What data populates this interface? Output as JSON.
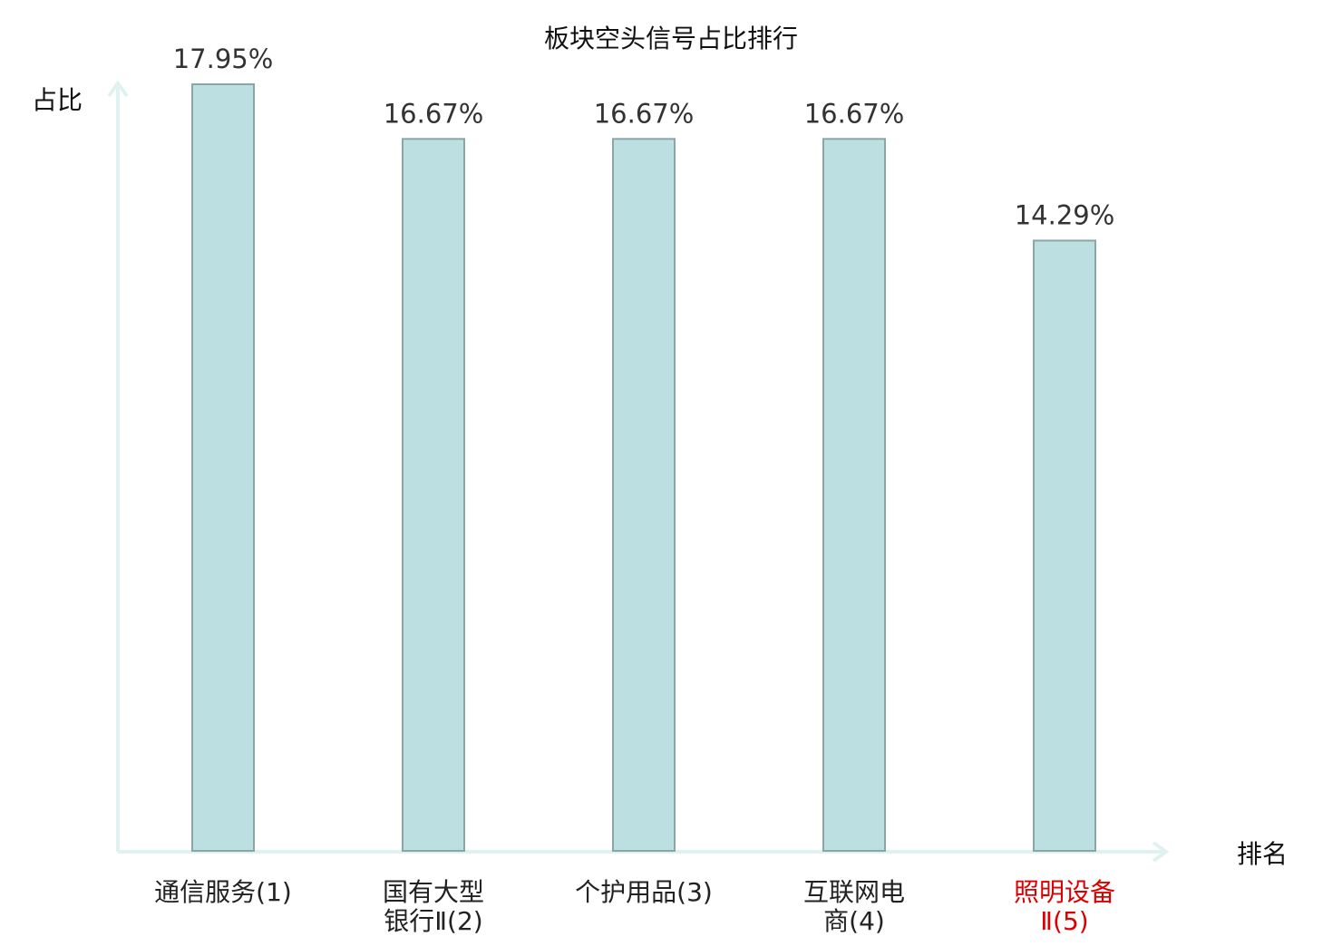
{
  "chart_data": {
    "type": "bar",
    "title": "板块空头信号占比排行",
    "ylabel": "占比",
    "xlabel": "排名",
    "categories": [
      [
        "通信服务(1)"
      ],
      [
        "国有大型",
        "银行Ⅱ(2)"
      ],
      [
        "个护用品(3)"
      ],
      [
        "互联网电",
        "商(4)"
      ],
      [
        "照明设备",
        "Ⅱ(5)"
      ]
    ],
    "values": [
      17.95,
      16.67,
      16.67,
      16.67,
      14.29
    ],
    "value_labels": [
      "17.95%",
      "16.67%",
      "16.67%",
      "16.67%",
      "14.29%"
    ],
    "highlight_index": 4,
    "grid": false,
    "colors": {
      "bar_fill": "#bce0e1",
      "bar_stroke": "#8aa6a6",
      "axis": "#dff2ef",
      "text": "#222222",
      "highlight_text": "#dd0000"
    }
  }
}
